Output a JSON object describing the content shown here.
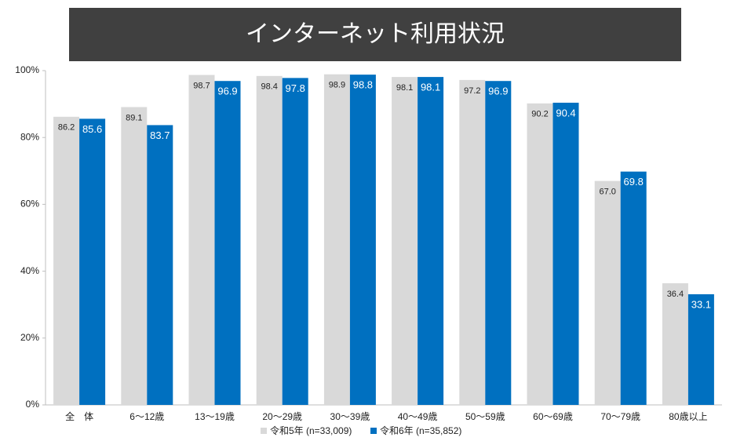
{
  "chart_data": {
    "type": "bar",
    "title": "インターネット利用状況",
    "categories": [
      "全　体",
      "6～12歳",
      "13～19歳",
      "20～29歳",
      "30～39歳",
      "40～49歳",
      "50～59歳",
      "60～69歳",
      "70～79歳",
      "80歳以上"
    ],
    "series": [
      {
        "name": "令和5年 (n=33,009)",
        "color": "#d9d9d9",
        "values": [
          86.2,
          89.1,
          98.7,
          98.4,
          98.9,
          98.1,
          97.2,
          90.2,
          67.0,
          36.4
        ],
        "value_labels": [
          "86.2",
          "89.1",
          "98.7",
          "98.4",
          "98.9",
          "98.1",
          "97.2",
          "90.2",
          "67.0",
          "36.4"
        ]
      },
      {
        "name": "令和6年 (n=35,852)",
        "color": "#0070c0",
        "values": [
          85.6,
          83.7,
          96.9,
          97.8,
          98.8,
          98.1,
          96.9,
          90.4,
          69.8,
          33.1
        ],
        "value_labels": [
          "85.6",
          "83.7",
          "96.9",
          "97.8",
          "98.8",
          "98.1",
          "96.9",
          "90.4",
          "69.8",
          "33.1"
        ]
      }
    ],
    "ylim": [
      0,
      100
    ],
    "yticks": [
      {
        "value": 0,
        "label": "0%"
      },
      {
        "value": 20,
        "label": "20%"
      },
      {
        "value": 40,
        "label": "40%"
      },
      {
        "value": 60,
        "label": "60%"
      },
      {
        "value": 80,
        "label": "80%"
      },
      {
        "value": 100,
        "label": "100%"
      }
    ],
    "grid": false,
    "legend": "bottom"
  }
}
